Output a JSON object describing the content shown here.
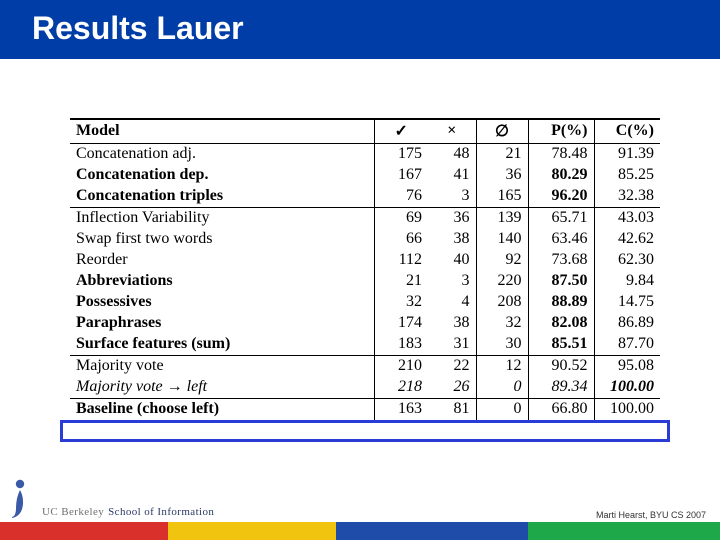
{
  "title": "Results Lauer",
  "credit": "Marti Hearst, BYU CS 2007",
  "school": {
    "prefix": "UC Berkeley",
    "name": "School of Information"
  },
  "stripe_colors": {
    "red": "#d9302c",
    "yellow": "#f0c40f",
    "blue": "#1f4ca8",
    "green": "#1ea84a"
  },
  "highlight_color": "#2a3bd6",
  "columns": {
    "model": "Model",
    "check": "✓",
    "cross": "×",
    "empty": "∅",
    "p": "P(%)",
    "c": "C(%)"
  },
  "sections": [
    {
      "rows": [
        {
          "model": "Concatenation adj.",
          "bold": false,
          "italic": false,
          "check": "175",
          "cross": "48",
          "empty": "21",
          "p": "78.48",
          "c": "91.39",
          "p_bold": false,
          "c_bold": false
        },
        {
          "model": "Concatenation dep.",
          "bold": true,
          "italic": false,
          "check": "167",
          "cross": "41",
          "empty": "36",
          "p": "80.29",
          "c": "85.25",
          "p_bold": true,
          "c_bold": false
        },
        {
          "model": "Concatenation triples",
          "bold": true,
          "italic": false,
          "check": "76",
          "cross": "3",
          "empty": "165",
          "p": "96.20",
          "c": "32.38",
          "p_bold": true,
          "c_bold": false
        }
      ]
    },
    {
      "rows": [
        {
          "model": "Inflection Variability",
          "bold": false,
          "italic": false,
          "check": "69",
          "cross": "36",
          "empty": "139",
          "p": "65.71",
          "c": "43.03",
          "p_bold": false,
          "c_bold": false
        },
        {
          "model": "Swap first two words",
          "bold": false,
          "italic": false,
          "check": "66",
          "cross": "38",
          "empty": "140",
          "p": "63.46",
          "c": "42.62",
          "p_bold": false,
          "c_bold": false
        },
        {
          "model": "Reorder",
          "bold": false,
          "italic": false,
          "check": "112",
          "cross": "40",
          "empty": "92",
          "p": "73.68",
          "c": "62.30",
          "p_bold": false,
          "c_bold": false
        },
        {
          "model": "Abbreviations",
          "bold": true,
          "italic": false,
          "check": "21",
          "cross": "3",
          "empty": "220",
          "p": "87.50",
          "c": "9.84",
          "p_bold": true,
          "c_bold": false
        },
        {
          "model": "Possessives",
          "bold": true,
          "italic": false,
          "check": "32",
          "cross": "4",
          "empty": "208",
          "p": "88.89",
          "c": "14.75",
          "p_bold": true,
          "c_bold": false
        },
        {
          "model": "Paraphrases",
          "bold": true,
          "italic": false,
          "check": "174",
          "cross": "38",
          "empty": "32",
          "p": "82.08",
          "c": "86.89",
          "p_bold": true,
          "c_bold": false
        },
        {
          "model": "Surface features (sum)",
          "bold": true,
          "italic": false,
          "check": "183",
          "cross": "31",
          "empty": "30",
          "p": "85.51",
          "c": "87.70",
          "p_bold": true,
          "c_bold": false
        }
      ]
    },
    {
      "rows": [
        {
          "model": "Majority vote",
          "bold": false,
          "italic": false,
          "check": "210",
          "cross": "22",
          "empty": "12",
          "p": "90.52",
          "c": "95.08",
          "p_bold": false,
          "c_bold": false
        },
        {
          "model": "Majority vote → left",
          "bold": false,
          "italic": true,
          "check": "218",
          "cross": "26",
          "empty": "0",
          "p": "89.34",
          "c": "100.00",
          "p_bold": false,
          "c_bold": true,
          "row_italic": true
        }
      ]
    },
    {
      "rows": [
        {
          "model": "Baseline (choose left)",
          "bold": false,
          "italic": false,
          "model_label_bold": true,
          "check": "163",
          "cross": "81",
          "empty": "0",
          "p": "66.80",
          "c": "100.00",
          "p_bold": false,
          "c_bold": false
        }
      ]
    }
  ]
}
